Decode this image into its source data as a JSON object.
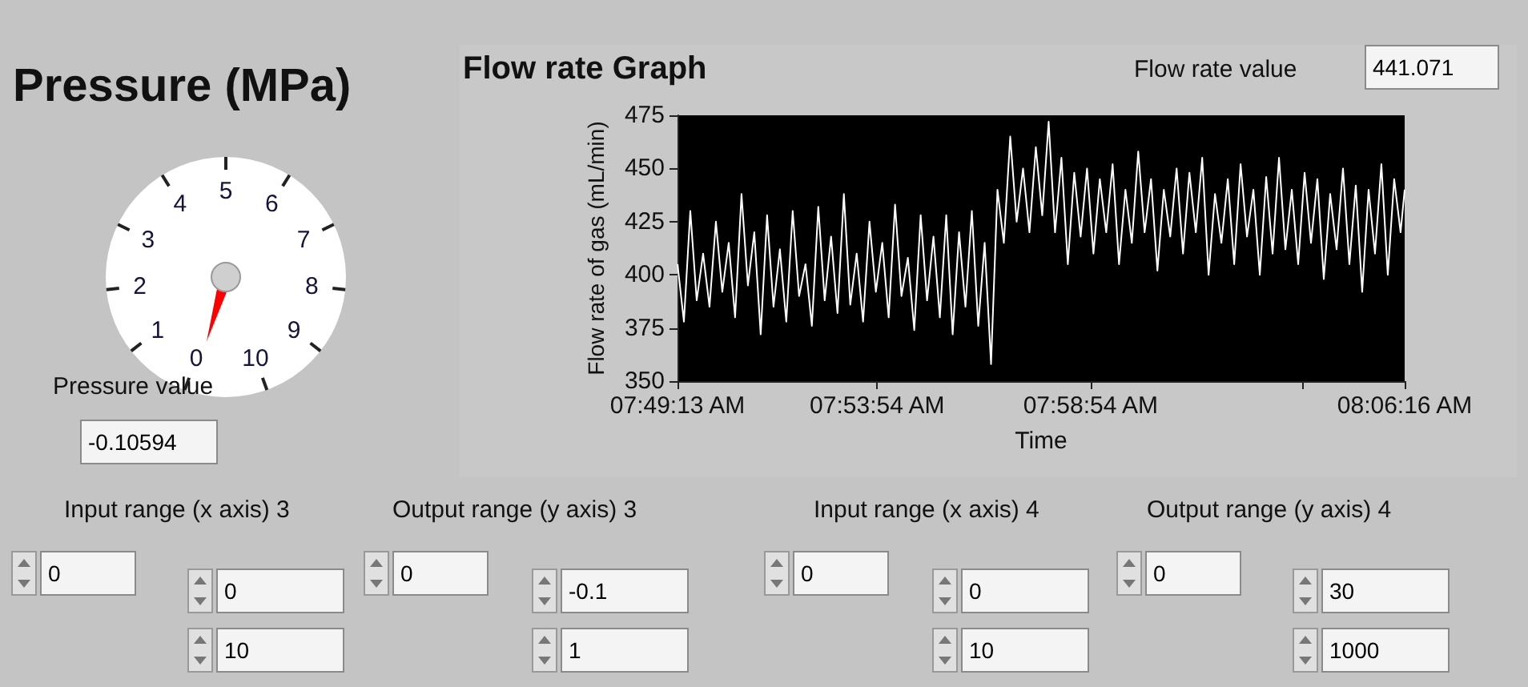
{
  "chart_data": [
    {
      "type": "other",
      "title": "Pressure (MPa)",
      "values": [
        -0.10594
      ],
      "value_labels": [
        "-0.10594"
      ],
      "annotations": [
        "Pressure value",
        "0",
        "1",
        "2",
        "3",
        "4",
        "5",
        "6",
        "7",
        "8",
        "9",
        "10"
      ]
    },
    {
      "type": "line",
      "title": "Flow rate Graph",
      "xlabel": "Time",
      "ylabel": "Flow rate of gas (mL/min)",
      "annotations": [
        "Flow rate value",
        "441.071"
      ],
      "xlim": [
        7.8203,
        8.1044
      ],
      "xticks": [
        {
          "value": 7.8203,
          "label": "07:49:13 AM"
        },
        {
          "value": 7.8983,
          "label": "07:53:54 AM"
        },
        {
          "value": 7.9817,
          "label": "07:58:54 AM"
        },
        {
          "value": 8.0642,
          "label": null
        },
        {
          "value": 8.1044,
          "label": "08:06:16 AM"
        }
      ],
      "ylim": [
        350,
        475
      ],
      "yticks": [
        350,
        375,
        400,
        425,
        450,
        475
      ],
      "grid": false,
      "marker": "none",
      "line_style": "solid",
      "series": [
        {
          "color": "#ffffff",
          "x": [
            7.8203,
            7.8228,
            7.8253,
            7.8278,
            7.8303,
            7.8328,
            7.8353,
            7.8378,
            7.8403,
            7.8428,
            7.8453,
            7.8478,
            7.8503,
            7.8528,
            7.8553,
            7.8578,
            7.8603,
            7.8628,
            7.8653,
            7.8678,
            7.8703,
            7.8728,
            7.8753,
            7.8778,
            7.8803,
            7.8828,
            7.8853,
            7.8878,
            7.8903,
            7.8928,
            7.8953,
            7.8978,
            7.9003,
            7.9028,
            7.9053,
            7.9078,
            7.9103,
            7.9128,
            7.9153,
            7.9178,
            7.9203,
            7.9228,
            7.9253,
            7.9278,
            7.9303,
            7.9328,
            7.9353,
            7.9378,
            7.9403,
            7.9428,
            7.9453,
            7.9478,
            7.9503,
            7.9528,
            7.9553,
            7.9578,
            7.9603,
            7.9628,
            7.9653,
            7.9678,
            7.9703,
            7.9728,
            7.9753,
            7.9778,
            7.9803,
            7.9828,
            7.9853,
            7.9878,
            7.9903,
            7.9928,
            7.9953,
            7.9978,
            8.0003,
            8.0028,
            8.0053,
            8.0078,
            8.0103,
            8.0128,
            8.0153,
            8.0178,
            8.0203,
            8.0228,
            8.0253,
            8.0278,
            8.0303,
            8.0328,
            8.0353,
            8.0378,
            8.0403,
            8.0428,
            8.0453,
            8.0478,
            8.0503,
            8.0528,
            8.0553,
            8.0578,
            8.0603,
            8.0628,
            8.0653,
            8.0678,
            8.0703,
            8.0728,
            8.0753,
            8.0778,
            8.0803,
            8.0828,
            8.0853,
            8.0878,
            8.0903,
            8.0928,
            8.0953,
            8.0978,
            8.1003,
            8.1028,
            8.1044
          ],
          "values": [
            405,
            378,
            430,
            388,
            410,
            385,
            425,
            392,
            415,
            380,
            438,
            395,
            420,
            372,
            428,
            385,
            412,
            378,
            430,
            390,
            405,
            376,
            432,
            388,
            418,
            382,
            438,
            386,
            410,
            378,
            425,
            392,
            415,
            380,
            433,
            390,
            408,
            374,
            428,
            388,
            418,
            380,
            428,
            372,
            420,
            385,
            430,
            376,
            415,
            358,
            440,
            415,
            465,
            425,
            450,
            420,
            460,
            428,
            472,
            420,
            455,
            405,
            448,
            418,
            450,
            410,
            445,
            420,
            452,
            405,
            440,
            415,
            458,
            420,
            445,
            402,
            440,
            418,
            450,
            410,
            448,
            420,
            455,
            400,
            438,
            415,
            445,
            405,
            452,
            418,
            440,
            400,
            446,
            410,
            455,
            412,
            440,
            405,
            448,
            415,
            445,
            398,
            438,
            412,
            450,
            405,
            442,
            392,
            440,
            410,
            452,
            400,
            445,
            420,
            440
          ]
        }
      ]
    },
    {
      "type": "other",
      "annotations": [
        "Input range (x axis)  3",
        "0",
        "0",
        "10",
        "Output range (y axis) 3",
        "0",
        "-0.1",
        "1",
        "Input range (x axis)  4",
        "0",
        "0",
        "10",
        "Output range (y axis) 4",
        "0",
        "30",
        "1000"
      ]
    }
  ]
}
